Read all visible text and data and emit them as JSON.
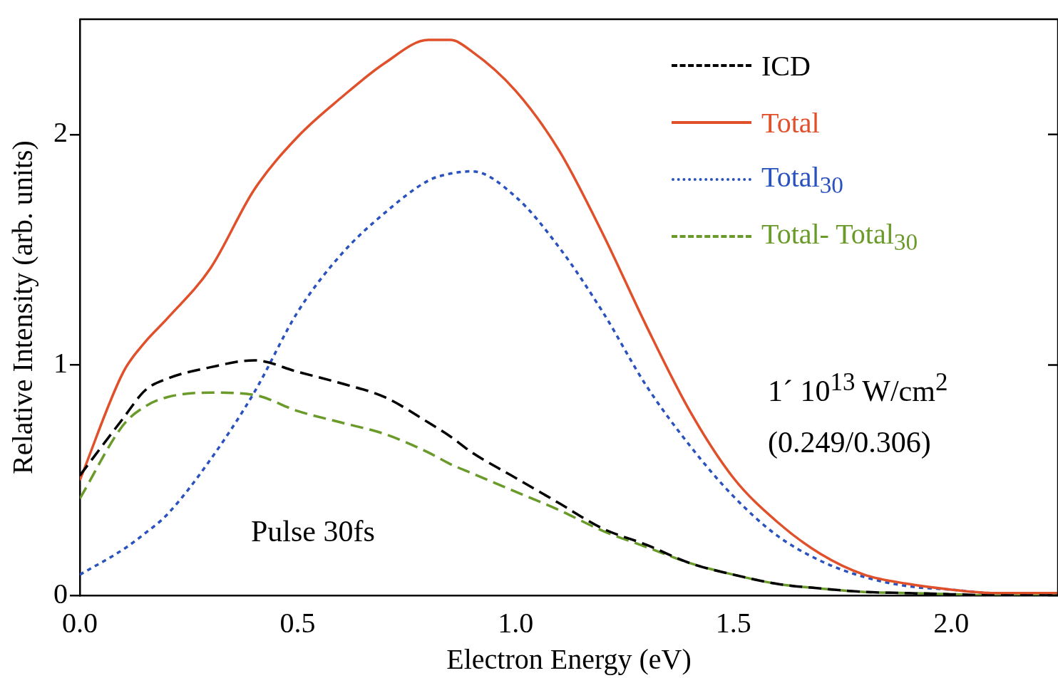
{
  "chart_data": {
    "type": "line",
    "xlabel": "Electron Energy (eV)",
    "ylabel": "Relative Intensity (arb. units)",
    "x": [
      0,
      0.1,
      0.15,
      0.2,
      0.3,
      0.4,
      0.5,
      0.6,
      0.7,
      0.8,
      0.85,
      0.9,
      1.0,
      1.1,
      1.2,
      1.3,
      1.4,
      1.5,
      1.6,
      1.7,
      1.8,
      1.9,
      2.0,
      2.1,
      2.245
    ],
    "series": [
      {
        "name": "ICD",
        "color": "#000000",
        "line_style": "dashed",
        "values": [
          0.52,
          0.77,
          0.89,
          0.94,
          0.99,
          1.02,
          0.97,
          0.92,
          0.86,
          0.75,
          0.69,
          0.62,
          0.51,
          0.4,
          0.29,
          0.22,
          0.14,
          0.09,
          0.05,
          0.03,
          0.015,
          0.01,
          0.005,
          0,
          0
        ]
      },
      {
        "name": "Total",
        "color": "#e0502a",
        "line_style": "solid",
        "values": [
          0.5,
          0.97,
          1.1,
          1.2,
          1.42,
          1.76,
          1.99,
          2.16,
          2.31,
          2.41,
          2.41,
          2.36,
          2.19,
          1.93,
          1.57,
          1.17,
          0.8,
          0.51,
          0.32,
          0.18,
          0.09,
          0.05,
          0.025,
          0.01,
          0.01
        ]
      },
      {
        "name": "Total$_{30}$",
        "color": "#2a52be",
        "line_style": "dotted",
        "values": [
          0.09,
          0.2,
          0.27,
          0.35,
          0.59,
          0.88,
          1.23,
          1.48,
          1.66,
          1.8,
          1.83,
          1.84,
          1.73,
          1.51,
          1.23,
          0.91,
          0.65,
          0.43,
          0.26,
          0.15,
          0.08,
          0.04,
          0.025,
          0.01,
          0.01
        ]
      },
      {
        "name": "Total- Total$_{30}$",
        "color": "#6a9a2a",
        "line_style": "dashed",
        "values": [
          0.42,
          0.74,
          0.82,
          0.86,
          0.88,
          0.87,
          0.8,
          0.75,
          0.7,
          0.62,
          0.57,
          0.53,
          0.45,
          0.37,
          0.28,
          0.21,
          0.14,
          0.09,
          0.05,
          0.03,
          0.015,
          0.01,
          0.005,
          0,
          0
        ]
      }
    ],
    "xlim": [
      0,
      2.245
    ],
    "xticks": [
      {
        "value": 0,
        "label": "0.0"
      },
      {
        "value": 0.5,
        "label": "0.5"
      },
      {
        "value": 1,
        "label": "1.0"
      },
      {
        "value": 1.5,
        "label": "1.5"
      },
      {
        "value": 2,
        "label": "2.0"
      }
    ],
    "ylim": [
      0,
      2.5
    ],
    "yticks": [
      0,
      1,
      2
    ],
    "grid": false,
    "legend": "top right",
    "marker": "none",
    "annotations": [
      "1´ 10$^{13}$ W/cm$^{2}$",
      "(0.249/0.306)",
      "Pulse 30fs"
    ]
  }
}
